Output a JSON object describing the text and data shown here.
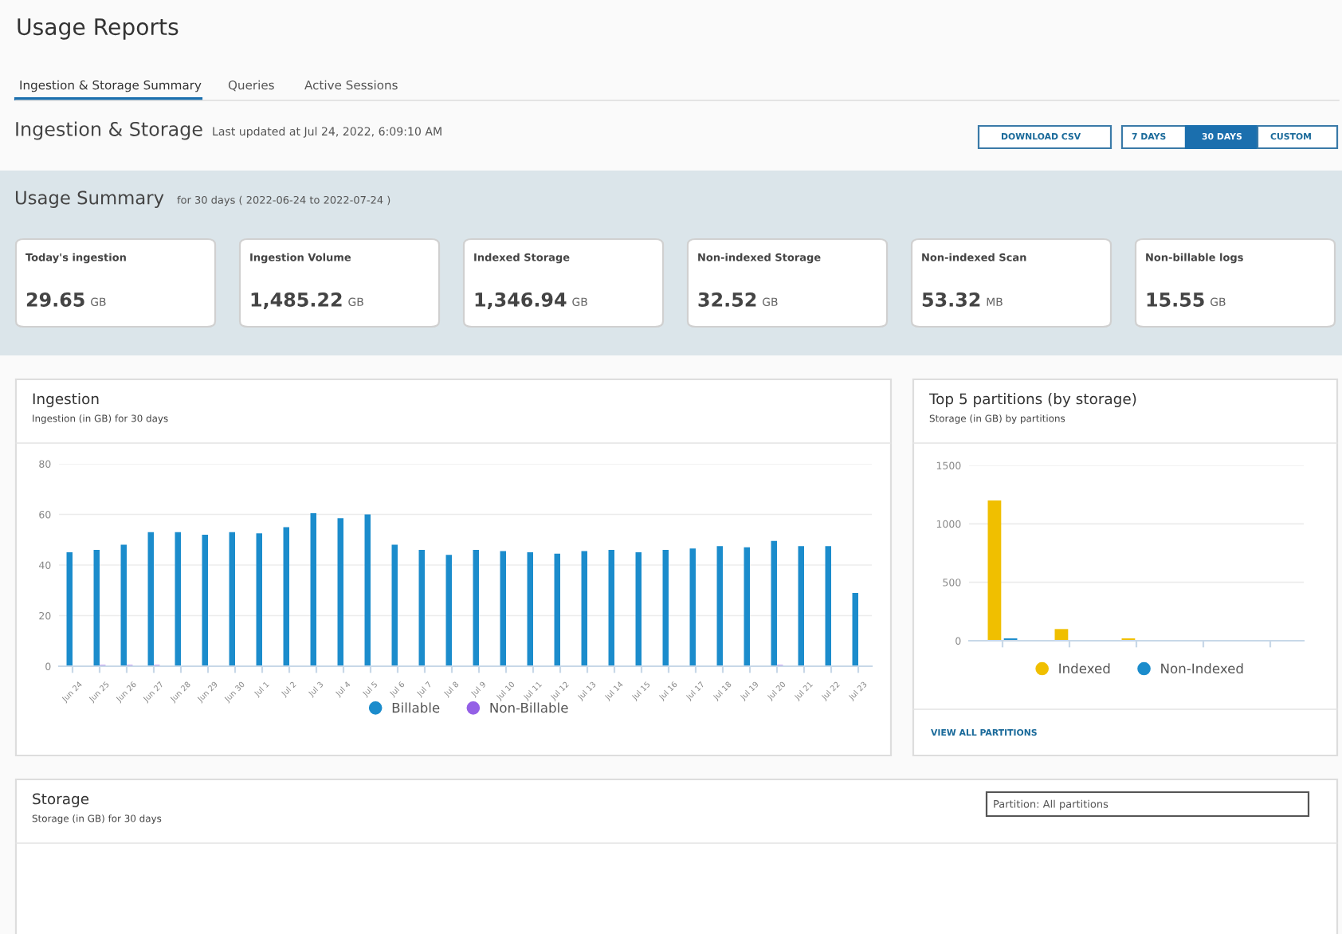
{
  "chart_data": [
    {
      "type": "other",
      "title": "Usage Reports",
      "annotations": [
        "Ingestion & Storage Summary",
        "Queries",
        "Active Sessions",
        "Ingestion & Storage",
        "Last updated at Jul 24, 2022, 6:09:10 AM",
        "DOWNLOAD CSV",
        "7 DAYS",
        "30 DAYS",
        "CUSTOM",
        "Usage Summary",
        "for 30 days ( 2022-06-24 to 2022-07-24 )"
      ],
      "categories": [
        "Today's ingestion",
        "Ingestion Volume",
        "Indexed Storage",
        "Non-indexed Storage",
        "Non-indexed Scan",
        "Non-billable logs"
      ],
      "values": [
        29.65,
        1485.22,
        1346.94,
        32.52,
        53.32,
        15.55
      ],
      "value_labels": [
        "29.65 GB",
        "1,485.22 GB",
        "1,346.94 GB",
        "32.52 GB",
        "53.32 MB",
        "15.55 GB"
      ]
    },
    {
      "type": "bar",
      "title": "Ingestion",
      "subtitle": "Ingestion (in GB) for 30 days",
      "categories": [
        "Jun 24",
        "Jun 25",
        "Jun 26",
        "Jun 27",
        "Jun 28",
        "Jun 29",
        "Jun 30",
        "Jul 1",
        "Jul 2",
        "Jul 3",
        "Jul 4",
        "Jul 5",
        "Jul 6",
        "Jul 7",
        "Jul 8",
        "Jul 9",
        "Jul 10",
        "Jul 11",
        "Jul 12",
        "Jul 13",
        "Jul 14",
        "Jul 15",
        "Jul 16",
        "Jul 17",
        "Jul 18",
        "Jul 19",
        "Jul 20",
        "Jul 21",
        "Jul 22",
        "Jul 23"
      ],
      "series": [
        {
          "name": "Billable",
          "color": "#1b8ccc",
          "values": [
            45,
            46,
            48,
            53,
            53,
            52,
            53,
            52.5,
            55,
            60.5,
            58.5,
            60,
            48,
            46,
            44,
            46,
            45.5,
            45,
            44.5,
            45.5,
            46,
            45,
            46,
            46.5,
            47.5,
            47,
            49.5,
            47.5,
            47.5,
            29
          ]
        },
        {
          "name": "Non-Billable",
          "color": "#9460e6",
          "values": [
            0,
            0.5,
            0.5,
            0.5,
            0,
            0,
            0,
            0,
            0,
            0,
            0,
            0,
            0,
            0,
            0,
            0,
            0,
            0,
            0,
            0,
            0,
            0,
            0,
            0,
            0,
            0,
            0.5,
            0,
            0,
            0
          ]
        }
      ],
      "ylim": [
        0,
        80
      ],
      "yticks": [
        0,
        20,
        40,
        60,
        80
      ],
      "grid": "y",
      "legend": "bottom"
    },
    {
      "type": "bar",
      "title": "Top 5 partitions (by storage)",
      "subtitle": "Storage (in GB) by partitions",
      "categories": [
        null,
        null,
        null,
        null,
        null
      ],
      "series": [
        {
          "name": "Indexed",
          "color": "#f0bf00",
          "values": [
            1200,
            100,
            20,
            0,
            0
          ]
        },
        {
          "name": "Non-Indexed",
          "color": "#1b8ccc",
          "values": [
            20,
            0,
            0,
            0,
            0
          ]
        }
      ],
      "ylim": [
        0,
        1500
      ],
      "yticks": [
        0,
        500,
        1000,
        1500
      ],
      "grid": "y",
      "legend": "bottom",
      "annotations": [
        "VIEW ALL PARTITIONS"
      ]
    },
    {
      "type": "other",
      "title": "Storage",
      "subtitle": "Storage (in GB) for 30 days",
      "annotations": [
        "Partition: All partitions"
      ]
    }
  ]
}
